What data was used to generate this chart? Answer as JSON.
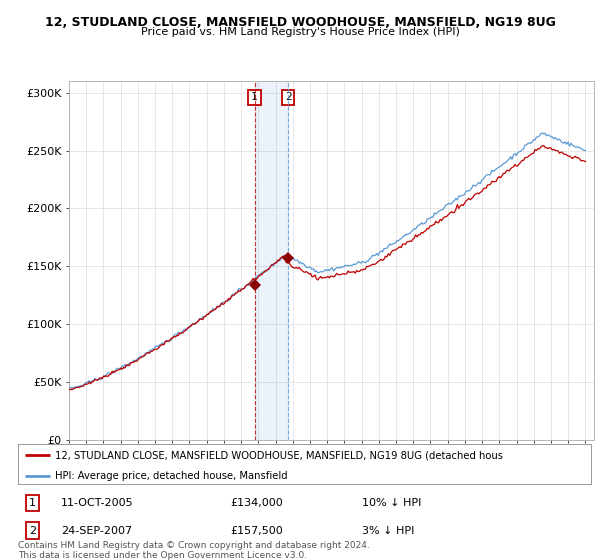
{
  "title1": "12, STUDLAND CLOSE, MANSFIELD WOODHOUSE, MANSFIELD, NG19 8UG",
  "title2": "Price paid vs. HM Land Registry's House Price Index (HPI)",
  "ylabel_ticks": [
    "£0",
    "£50K",
    "£100K",
    "£150K",
    "£200K",
    "£250K",
    "£300K"
  ],
  "ytick_values": [
    0,
    50000,
    100000,
    150000,
    200000,
    250000,
    300000
  ],
  "ylim": [
    0,
    310000
  ],
  "transaction1_year": 2005.78,
  "transaction1_price": 134000,
  "transaction1_label": "1",
  "transaction1_date": "11-OCT-2005",
  "transaction1_hpi_diff": "10% ↓ HPI",
  "transaction2_year": 2007.73,
  "transaction2_price": 157500,
  "transaction2_label": "2",
  "transaction2_date": "24-SEP-2007",
  "transaction2_hpi_diff": "3% ↓ HPI",
  "hpi_line_color": "#5b9bd5",
  "price_line_color": "#c00000",
  "marker_color": "#8b0000",
  "legend_label1": "12, STUDLAND CLOSE, MANSFIELD WOODHOUSE, MANSFIELD, NG19 8UG (detached hous",
  "legend_label2": "HPI: Average price, detached house, Mansfield",
  "footnote": "Contains HM Land Registry data © Crown copyright and database right 2024.\nThis data is licensed under the Open Government Licence v3.0.",
  "background_color": "#ffffff",
  "grid_color": "#dddddd"
}
